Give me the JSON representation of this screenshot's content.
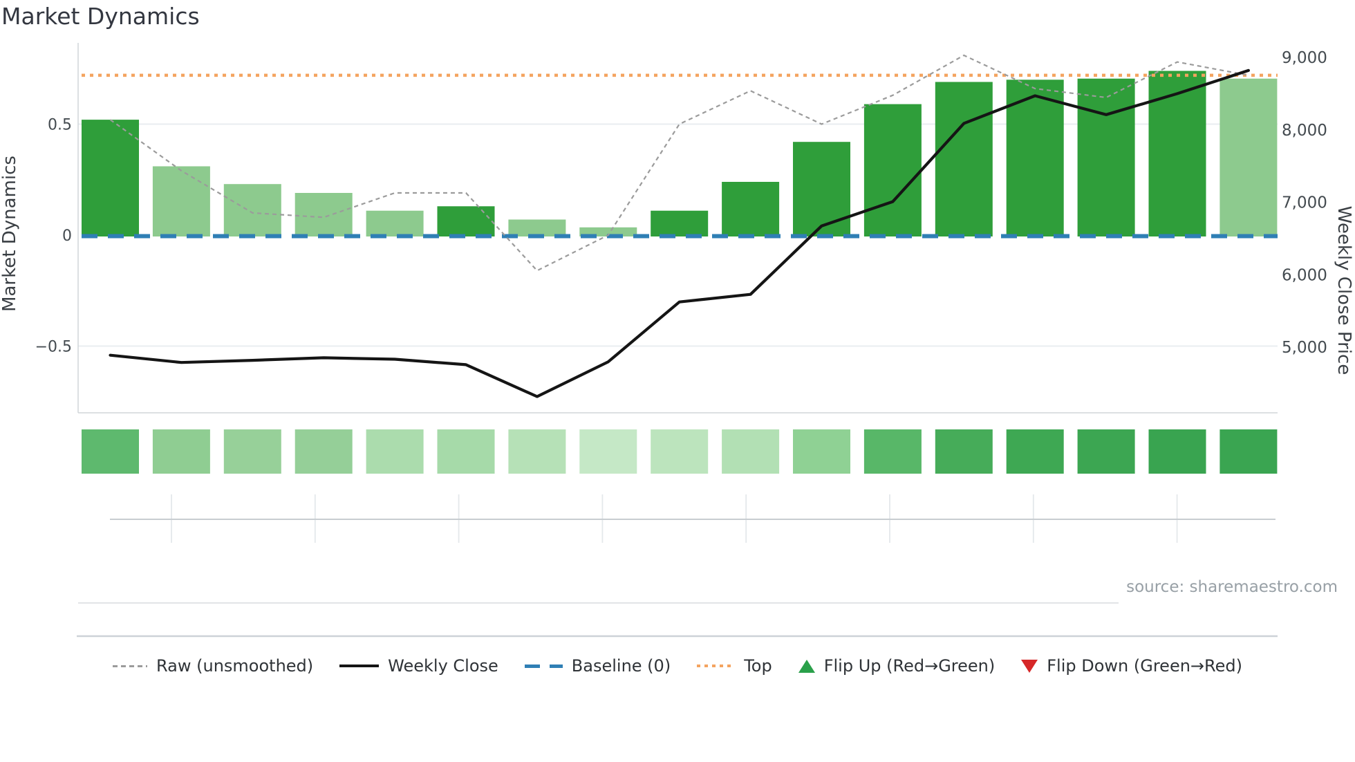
{
  "chart_data": {
    "type": "combo",
    "title": "Market Dynamics",
    "weeks": 17,
    "left_axis": {
      "label": "Market Dynamics",
      "ticks": [
        {
          "value": 0.5,
          "label": "0.5"
        },
        {
          "value": 0,
          "label": "0"
        },
        {
          "value": -0.5,
          "label": "−0.5"
        }
      ],
      "range": [
        -0.8,
        0.87
      ],
      "grid": true
    },
    "right_axis": {
      "label": "Weekly Close Price",
      "ticks": [
        {
          "value": 9000,
          "label": "9,000"
        },
        {
          "value": 8000,
          "label": "8,000"
        },
        {
          "value": 7000,
          "label": "7,000"
        },
        {
          "value": 6000,
          "label": "6,000"
        },
        {
          "value": 5000,
          "label": "5,000"
        }
      ],
      "range": [
        4100,
        9200
      ]
    },
    "series": {
      "momentum_bars": {
        "type": "bar",
        "values": [
          0.52,
          0.31,
          0.23,
          0.19,
          0.11,
          0.13,
          0.07,
          0.035,
          0.11,
          0.24,
          0.42,
          0.59,
          0.69,
          0.7,
          0.705,
          0.74,
          0.705
        ],
        "direction": [
          "up",
          "down",
          "down",
          "down",
          "down",
          "up",
          "down",
          "down",
          "up",
          "up",
          "up",
          "up",
          "up",
          "up",
          "up",
          "up",
          "down"
        ],
        "color_up": "#2f9e3a",
        "color_down": "#8dca8e"
      },
      "raw": {
        "type": "line",
        "style": "dashed",
        "color": "#9b9b9b",
        "axis": "left",
        "values": [
          0.52,
          0.29,
          0.1,
          0.08,
          0.19,
          0.19,
          -0.16,
          0.0,
          0.5,
          0.65,
          0.5,
          0.63,
          0.81,
          0.66,
          0.62,
          0.78,
          0.72
        ]
      },
      "weekly_close": {
        "type": "line",
        "style": "solid",
        "color": "#151515",
        "axis": "right",
        "values": [
          4890,
          4790,
          4820,
          4855,
          4835,
          4760,
          4320,
          4800,
          5625,
          5730,
          6675,
          7010,
          8090,
          8470,
          8210,
          8500,
          8820
        ]
      },
      "baseline": {
        "type": "hline",
        "value": 0,
        "style": "dashed",
        "color": "#2f7fb5"
      },
      "top": {
        "type": "hline",
        "value": 0.72,
        "style": "dotted",
        "color": "#f4a460"
      }
    },
    "heat_strip": {
      "colors": [
        "#5eb96e",
        "#8fcd92",
        "#97d099",
        "#95cf98",
        "#abdcad",
        "#a6daa9",
        "#b6e1b7",
        "#c5e8c6",
        "#bce4bd",
        "#b2e0b4",
        "#8fd194",
        "#58b768",
        "#46ac59",
        "#3ea853",
        "#3ca652",
        "#39a450",
        "#3aa551"
      ]
    },
    "x_axis": {
      "tick_count": 8,
      "labels": []
    },
    "legend": [
      {
        "swatch": "line-dashed",
        "color": "#9b9b9b",
        "label": "Raw (unsmoothed)"
      },
      {
        "swatch": "line-solid",
        "color": "#151515",
        "label": "Weekly Close"
      },
      {
        "swatch": "line-dashed-thick",
        "color": "#2f7fb5",
        "label": "Baseline (0)"
      },
      {
        "swatch": "line-dotted",
        "color": "#f4a460",
        "label": "Top"
      },
      {
        "swatch": "triangle-up",
        "color": "#2aa04a",
        "label": "Flip Up (Red→Green)"
      },
      {
        "swatch": "triangle-down",
        "color": "#d62728",
        "label": "Flip Down (Green→Red)"
      }
    ],
    "source": "source: sharemaestro.com"
  }
}
